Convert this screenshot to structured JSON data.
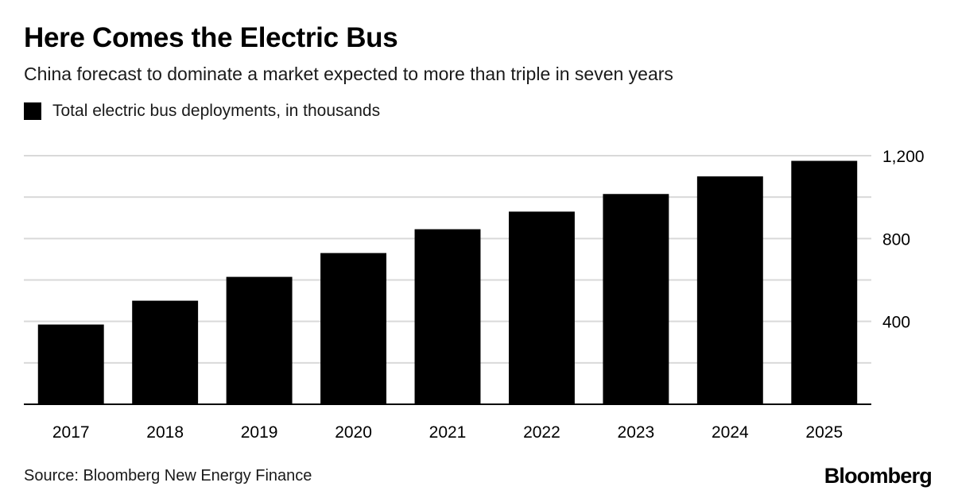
{
  "header": {
    "title": "Here Comes the Electric Bus",
    "subtitle": "China forecast to dominate a market expected to more than triple in seven years"
  },
  "legend": {
    "label": "Total electric bus deployments, in thousands"
  },
  "chart_data": {
    "type": "bar",
    "categories": [
      "2017",
      "2018",
      "2019",
      "2020",
      "2021",
      "2022",
      "2023",
      "2024",
      "2025"
    ],
    "series": [
      {
        "name": "Total electric bus deployments, in thousands",
        "values": [
          385,
          500,
          615,
          730,
          845,
          930,
          1015,
          1100,
          1175
        ]
      }
    ],
    "ylim": [
      0,
      1200
    ],
    "yticks": [
      0,
      200,
      400,
      600,
      800,
      1000,
      1200
    ],
    "ytick_labels": [
      "",
      "",
      "400",
      "",
      "800",
      "",
      "1,200"
    ],
    "grid": true,
    "y_axis_side": "right",
    "bar_color": "#000000",
    "grid_color": "#d9d9d9"
  },
  "footer": {
    "source": "Source: Bloomberg New Energy Finance",
    "brand": "Bloomberg"
  }
}
